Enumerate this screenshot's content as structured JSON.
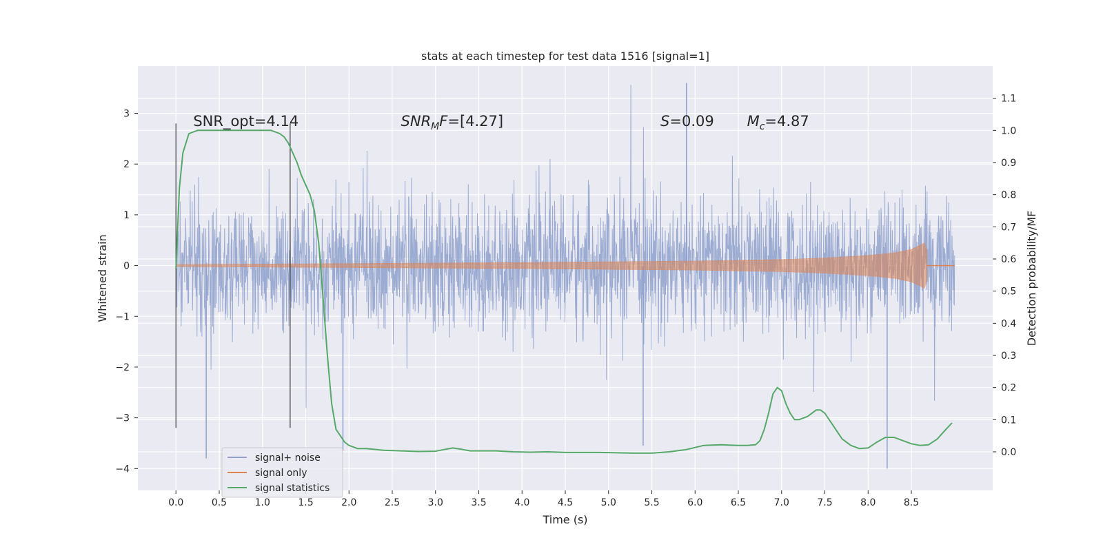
{
  "chart_data": {
    "type": "line",
    "title": "stats at each timestep for test data 1516 [signal=1]",
    "xlabel": "Time (s)",
    "ylabel": "Whitened strain",
    "y2label": "Detection probability/MF",
    "xlim": [
      -0.44,
      9.44
    ],
    "ylim": [
      -4.43,
      3.93
    ],
    "y2lim": [
      -0.12,
      1.2
    ],
    "x_ticks": [
      0.0,
      0.5,
      1.0,
      1.5,
      2.0,
      2.5,
      3.0,
      3.5,
      4.0,
      4.5,
      5.0,
      5.5,
      6.0,
      6.5,
      7.0,
      7.5,
      8.0,
      8.5
    ],
    "x_tick_labels": [
      "0.0",
      "0.5",
      "1.0",
      "1.5",
      "2.0",
      "2.5",
      "3.0",
      "3.5",
      "4.0",
      "4.5",
      "5.0",
      "5.5",
      "6.0",
      "6.5",
      "7.0",
      "7.5",
      "8.0",
      "8.5"
    ],
    "y_ticks": [
      -4,
      -3,
      -2,
      -1,
      0,
      1,
      2,
      3
    ],
    "y_tick_labels": [
      "−4",
      "−3",
      "−2",
      "−1",
      "0",
      "1",
      "2",
      "3"
    ],
    "y2_ticks": [
      0.0,
      0.1,
      0.2,
      0.3,
      0.4,
      0.5,
      0.6,
      0.7,
      0.8,
      0.9,
      1.0,
      1.1
    ],
    "y2_tick_labels": [
      "0.0",
      "0.1",
      "0.2",
      "0.3",
      "0.4",
      "0.5",
      "0.6",
      "0.7",
      "0.8",
      "0.9",
      "1.0",
      "1.1"
    ],
    "grid": true,
    "legend_position": "lower-left",
    "series": [
      {
        "name": "signal+ noise",
        "color": "#8ea0cb",
        "kind": "noisy-strain",
        "t_range": [
          0.0,
          9.0
        ],
        "typical_range": [
          -1.5,
          1.6
        ],
        "extremes": {
          "max": 3.6,
          "min": -4.0
        }
      },
      {
        "name": "signal only",
        "color": "#dd8452",
        "kind": "chirp",
        "t_range": [
          0.0,
          8.68
        ],
        "envelope_t": [
          0.0,
          2.0,
          4.0,
          6.0,
          7.0,
          7.5,
          8.0,
          8.3,
          8.5,
          8.6,
          8.65,
          8.68
        ],
        "envelope_amp": [
          0.02,
          0.04,
          0.06,
          0.09,
          0.12,
          0.15,
          0.2,
          0.25,
          0.32,
          0.4,
          0.45,
          0.3
        ]
      },
      {
        "name": "signal statistics",
        "color": "#55a868",
        "axis": "right",
        "x": [
          0.0,
          0.04,
          0.08,
          0.15,
          0.25,
          0.4,
          0.6,
          0.8,
          1.0,
          1.1,
          1.2,
          1.25,
          1.3,
          1.35,
          1.4,
          1.45,
          1.5,
          1.55,
          1.6,
          1.65,
          1.7,
          1.75,
          1.8,
          1.85,
          1.9,
          1.95,
          2.0,
          2.1,
          2.2,
          2.4,
          2.6,
          2.8,
          3.0,
          3.1,
          3.2,
          3.3,
          3.4,
          3.5,
          3.7,
          3.9,
          4.1,
          4.3,
          4.5,
          4.7,
          4.9,
          5.1,
          5.3,
          5.5,
          5.7,
          5.9,
          6.1,
          6.3,
          6.5,
          6.6,
          6.7,
          6.75,
          6.8,
          6.85,
          6.9,
          6.95,
          7.0,
          7.05,
          7.1,
          7.15,
          7.2,
          7.3,
          7.4,
          7.45,
          7.5,
          7.6,
          7.7,
          7.8,
          7.9,
          8.0,
          8.1,
          8.2,
          8.3,
          8.4,
          8.5,
          8.6,
          8.7,
          8.8,
          8.9,
          8.97
        ],
        "values": [
          0.57,
          0.82,
          0.93,
          0.99,
          1.0,
          1.0,
          1.0,
          1.0,
          1.0,
          1.0,
          0.99,
          0.98,
          0.96,
          0.93,
          0.9,
          0.86,
          0.83,
          0.8,
          0.75,
          0.65,
          0.48,
          0.3,
          0.15,
          0.07,
          0.05,
          0.03,
          0.02,
          0.01,
          0.01,
          0.005,
          0.003,
          0.001,
          0.002,
          0.007,
          0.012,
          0.008,
          0.003,
          0.003,
          0.003,
          0.0,
          -0.001,
          0.0,
          -0.002,
          -0.002,
          -0.002,
          -0.003,
          -0.004,
          -0.004,
          0.0,
          0.007,
          0.02,
          0.022,
          0.02,
          0.02,
          0.022,
          0.035,
          0.07,
          0.12,
          0.18,
          0.2,
          0.19,
          0.15,
          0.12,
          0.1,
          0.1,
          0.11,
          0.13,
          0.13,
          0.12,
          0.08,
          0.04,
          0.02,
          0.01,
          0.012,
          0.03,
          0.045,
          0.045,
          0.035,
          0.025,
          0.02,
          0.022,
          0.04,
          0.07,
          0.09
        ]
      }
    ],
    "vertical_lines": [
      0.0,
      1.32
    ],
    "vertical_line_range": [
      -3.2,
      2.8
    ],
    "annotations": [
      {
        "text": "SNR_opt=4.14",
        "x": 0.2,
        "y": 2.75
      },
      {
        "text": "SNRMF=[4.27]",
        "x": 2.6,
        "y": 2.75
      },
      {
        "text": "S=0.09",
        "x": 5.6,
        "y": 2.75
      },
      {
        "text": "Mc=4.87",
        "x": 6.6,
        "y": 2.75
      }
    ]
  }
}
